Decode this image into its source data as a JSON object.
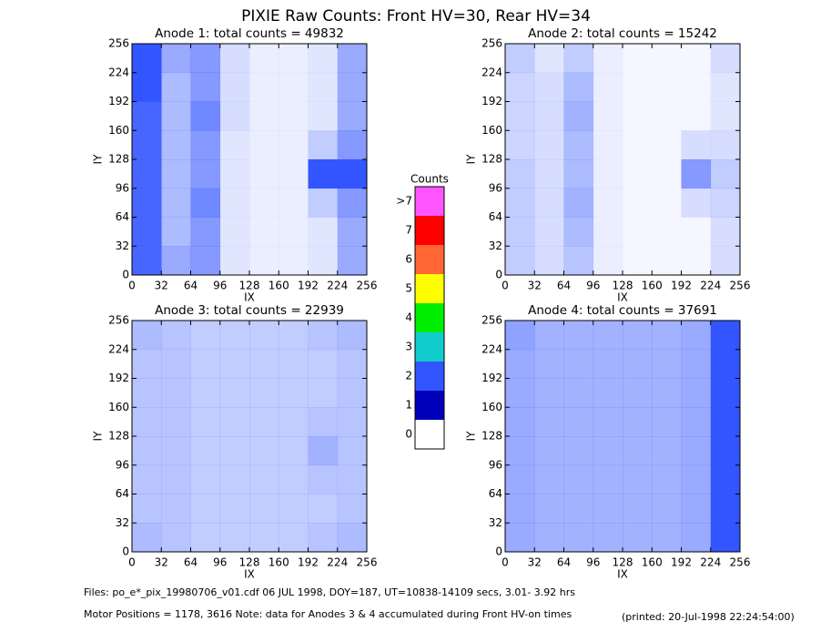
{
  "title": "PIXIE Raw Counts:  Front HV=30, Rear HV=34",
  "chart_data": [
    {
      "type": "heatmap",
      "title": "Anode 1: total counts = 49832",
      "xlabel": "IX",
      "ylabel": "IY",
      "xlim": [
        0,
        256
      ],
      "ylim": [
        0,
        256
      ],
      "xticks": [
        0,
        32,
        64,
        96,
        128,
        160,
        192,
        224,
        256
      ],
      "yticks": [
        0,
        32,
        64,
        96,
        128,
        160,
        192,
        224,
        256
      ],
      "z": [
        [
          0.9,
          0.5,
          0.6,
          0.15,
          0.1,
          0.1,
          0.15,
          0.5
        ],
        [
          0.9,
          0.4,
          0.6,
          0.15,
          0.1,
          0.1,
          0.15,
          0.5
        ],
        [
          0.9,
          0.4,
          0.7,
          0.15,
          0.1,
          0.1,
          0.3,
          0.6
        ],
        [
          0.9,
          0.4,
          0.6,
          0.15,
          0.1,
          0.1,
          1.2,
          1.3
        ],
        [
          0.9,
          0.4,
          0.6,
          0.15,
          0.1,
          0.1,
          0.3,
          0.6
        ],
        [
          0.9,
          0.4,
          0.7,
          0.2,
          0.1,
          0.1,
          0.15,
          0.5
        ],
        [
          1.0,
          0.4,
          0.6,
          0.2,
          0.1,
          0.1,
          0.15,
          0.5
        ],
        [
          1.0,
          0.5,
          0.6,
          0.2,
          0.1,
          0.1,
          0.15,
          0.5
        ]
      ]
    },
    {
      "type": "heatmap",
      "title": "Anode 2: total counts = 15242",
      "xlabel": "IX",
      "ylabel": "IY",
      "xlim": [
        0,
        256
      ],
      "ylim": [
        0,
        256
      ],
      "xticks": [
        0,
        32,
        64,
        96,
        128,
        160,
        192,
        224,
        256
      ],
      "yticks": [
        0,
        32,
        64,
        96,
        128,
        160,
        192,
        224,
        256
      ],
      "z": [
        [
          0.3,
          0.2,
          0.35,
          0.1,
          0.05,
          0.05,
          0.05,
          0.2
        ],
        [
          0.3,
          0.2,
          0.4,
          0.1,
          0.05,
          0.05,
          0.05,
          0.2
        ],
        [
          0.3,
          0.2,
          0.45,
          0.1,
          0.05,
          0.05,
          0.2,
          0.25
        ],
        [
          0.3,
          0.2,
          0.4,
          0.1,
          0.05,
          0.05,
          0.6,
          0.3
        ],
        [
          0.25,
          0.2,
          0.4,
          0.1,
          0.05,
          0.05,
          0.2,
          0.2
        ],
        [
          0.25,
          0.2,
          0.45,
          0.1,
          0.05,
          0.05,
          0.05,
          0.15
        ],
        [
          0.25,
          0.2,
          0.4,
          0.1,
          0.05,
          0.05,
          0.05,
          0.15
        ],
        [
          0.3,
          0.15,
          0.3,
          0.1,
          0.05,
          0.05,
          0.05,
          0.2
        ]
      ]
    },
    {
      "type": "heatmap",
      "title": "Anode 3: total counts = 22939",
      "xlabel": "IX",
      "ylabel": "IY",
      "xlim": [
        0,
        256
      ],
      "ylim": [
        0,
        256
      ],
      "xticks": [
        0,
        32,
        64,
        96,
        128,
        160,
        192,
        224,
        256
      ],
      "yticks": [
        0,
        32,
        64,
        96,
        128,
        160,
        192,
        224,
        256
      ],
      "z": [
        [
          0.4,
          0.35,
          0.3,
          0.3,
          0.3,
          0.3,
          0.35,
          0.4
        ],
        [
          0.35,
          0.35,
          0.3,
          0.3,
          0.3,
          0.3,
          0.3,
          0.35
        ],
        [
          0.35,
          0.35,
          0.3,
          0.3,
          0.3,
          0.3,
          0.35,
          0.35
        ],
        [
          0.35,
          0.35,
          0.3,
          0.3,
          0.3,
          0.3,
          0.45,
          0.35
        ],
        [
          0.35,
          0.35,
          0.3,
          0.3,
          0.3,
          0.3,
          0.35,
          0.35
        ],
        [
          0.35,
          0.35,
          0.3,
          0.3,
          0.3,
          0.3,
          0.3,
          0.35
        ],
        [
          0.35,
          0.35,
          0.3,
          0.3,
          0.3,
          0.3,
          0.3,
          0.35
        ],
        [
          0.4,
          0.35,
          0.3,
          0.3,
          0.3,
          0.3,
          0.35,
          0.4
        ]
      ]
    },
    {
      "type": "heatmap",
      "title": "Anode 4: total counts = 37691",
      "xlabel": "IX",
      "ylabel": "IY",
      "xlim": [
        0,
        256
      ],
      "ylim": [
        0,
        256
      ],
      "xticks": [
        0,
        32,
        64,
        96,
        128,
        160,
        192,
        224,
        256
      ],
      "yticks": [
        0,
        32,
        64,
        96,
        128,
        160,
        192,
        224,
        256
      ],
      "z": [
        [
          0.5,
          0.45,
          0.45,
          0.45,
          0.45,
          0.45,
          0.5,
          1.1
        ],
        [
          0.5,
          0.45,
          0.45,
          0.45,
          0.45,
          0.45,
          0.5,
          1.2
        ],
        [
          0.5,
          0.45,
          0.45,
          0.45,
          0.45,
          0.45,
          0.5,
          1.1
        ],
        [
          0.5,
          0.45,
          0.45,
          0.45,
          0.45,
          0.45,
          0.5,
          1.1
        ],
        [
          0.5,
          0.45,
          0.45,
          0.45,
          0.45,
          0.45,
          0.5,
          1.1
        ],
        [
          0.5,
          0.45,
          0.45,
          0.45,
          0.45,
          0.45,
          0.5,
          1.1
        ],
        [
          0.5,
          0.45,
          0.45,
          0.45,
          0.45,
          0.45,
          0.5,
          1.1
        ],
        [
          0.55,
          0.45,
          0.45,
          0.45,
          0.45,
          0.45,
          0.5,
          1.2
        ]
      ]
    }
  ],
  "colorbar": {
    "title": "Counts",
    "levels": [
      {
        "label": "0",
        "color": "#ffffff"
      },
      {
        "label": "1",
        "color": "#0000bb"
      },
      {
        "label": "2",
        "color": "#3355ff"
      },
      {
        "label": "3",
        "color": "#11cccc"
      },
      {
        "label": "4",
        "color": "#00ee00"
      },
      {
        "label": "5",
        "color": "#ffff00"
      },
      {
        "label": "6",
        "color": "#ff6633"
      },
      {
        "label": "7",
        "color": "#ff0000"
      },
      {
        "label": ">7",
        "color": "#ff55ff"
      }
    ]
  },
  "footer": {
    "files": "Files: po_e*_pix_19980706_v01.cdf    06 JUL 1998, DOY=187, UT=10838-14109 secs,  3.01- 3.92 hrs",
    "motor": "Motor Positions = 1178, 3616   Note: data for Anodes 3 & 4 accumulated during Front HV-on times",
    "printed": "(printed: 20-Jul-1998 22:24:54:00)"
  }
}
